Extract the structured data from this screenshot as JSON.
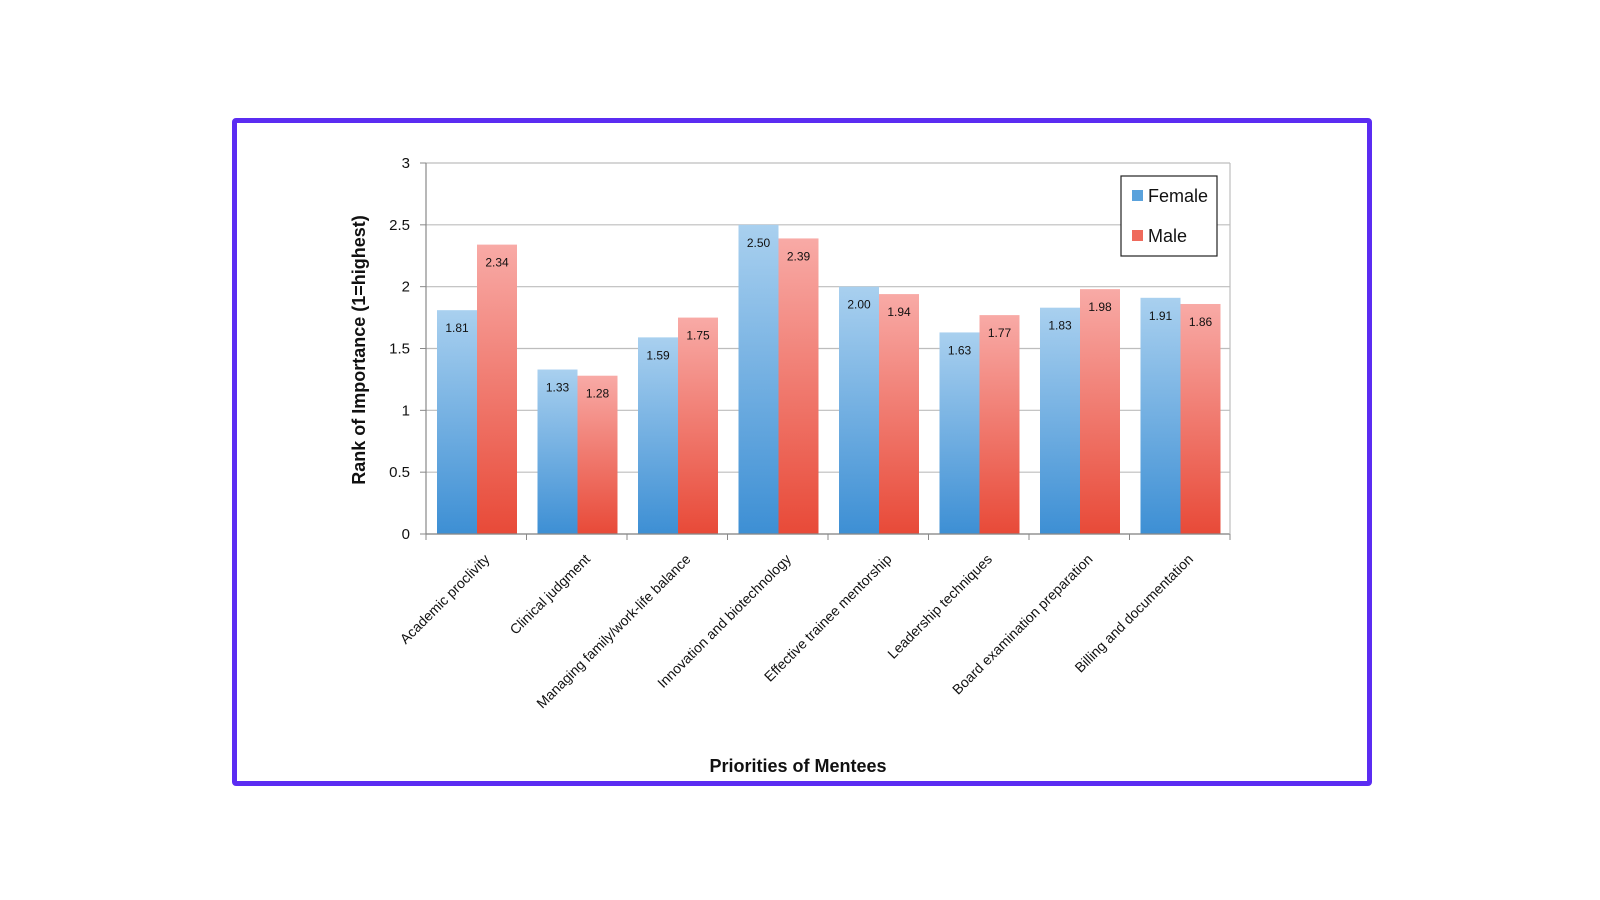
{
  "chart_data": {
    "type": "bar",
    "title": "",
    "xlabel": "Priorities of Mentees",
    "ylabel": "Rank of Importance (1=highest)",
    "ylim": [
      0,
      3
    ],
    "yticks": [
      "0",
      "0.5",
      "1",
      "1.5",
      "2",
      "2.5",
      "3"
    ],
    "ytick_values": [
      0,
      0.5,
      1,
      1.5,
      2,
      2.5,
      3
    ],
    "grid": true,
    "legend_position": "top-right",
    "categories": [
      "Academic proclivity",
      "Clinical judgment",
      "Managing family/work-life balance",
      "Innovation and biotechnology",
      "Effective trainee mentorship",
      "Leadership techniques",
      "Board examination preparation",
      "Billing and documentation"
    ],
    "series": [
      {
        "name": "Female",
        "color": "#5aa2dc",
        "values": [
          1.81,
          1.33,
          1.59,
          2.5,
          2.0,
          1.63,
          1.83,
          1.91
        ],
        "labels": [
          "1.81",
          "1.33",
          "1.59",
          "2.50",
          "2.00",
          "1.63",
          "1.83",
          "1.91"
        ]
      },
      {
        "name": "Male",
        "color": "#ef6a5c",
        "values": [
          2.34,
          1.28,
          1.75,
          2.39,
          1.94,
          1.77,
          1.98,
          1.86
        ],
        "labels": [
          "2.34",
          "1.28",
          "1.75",
          "2.39",
          "1.94",
          "1.77",
          "1.98",
          "1.86"
        ]
      }
    ]
  }
}
